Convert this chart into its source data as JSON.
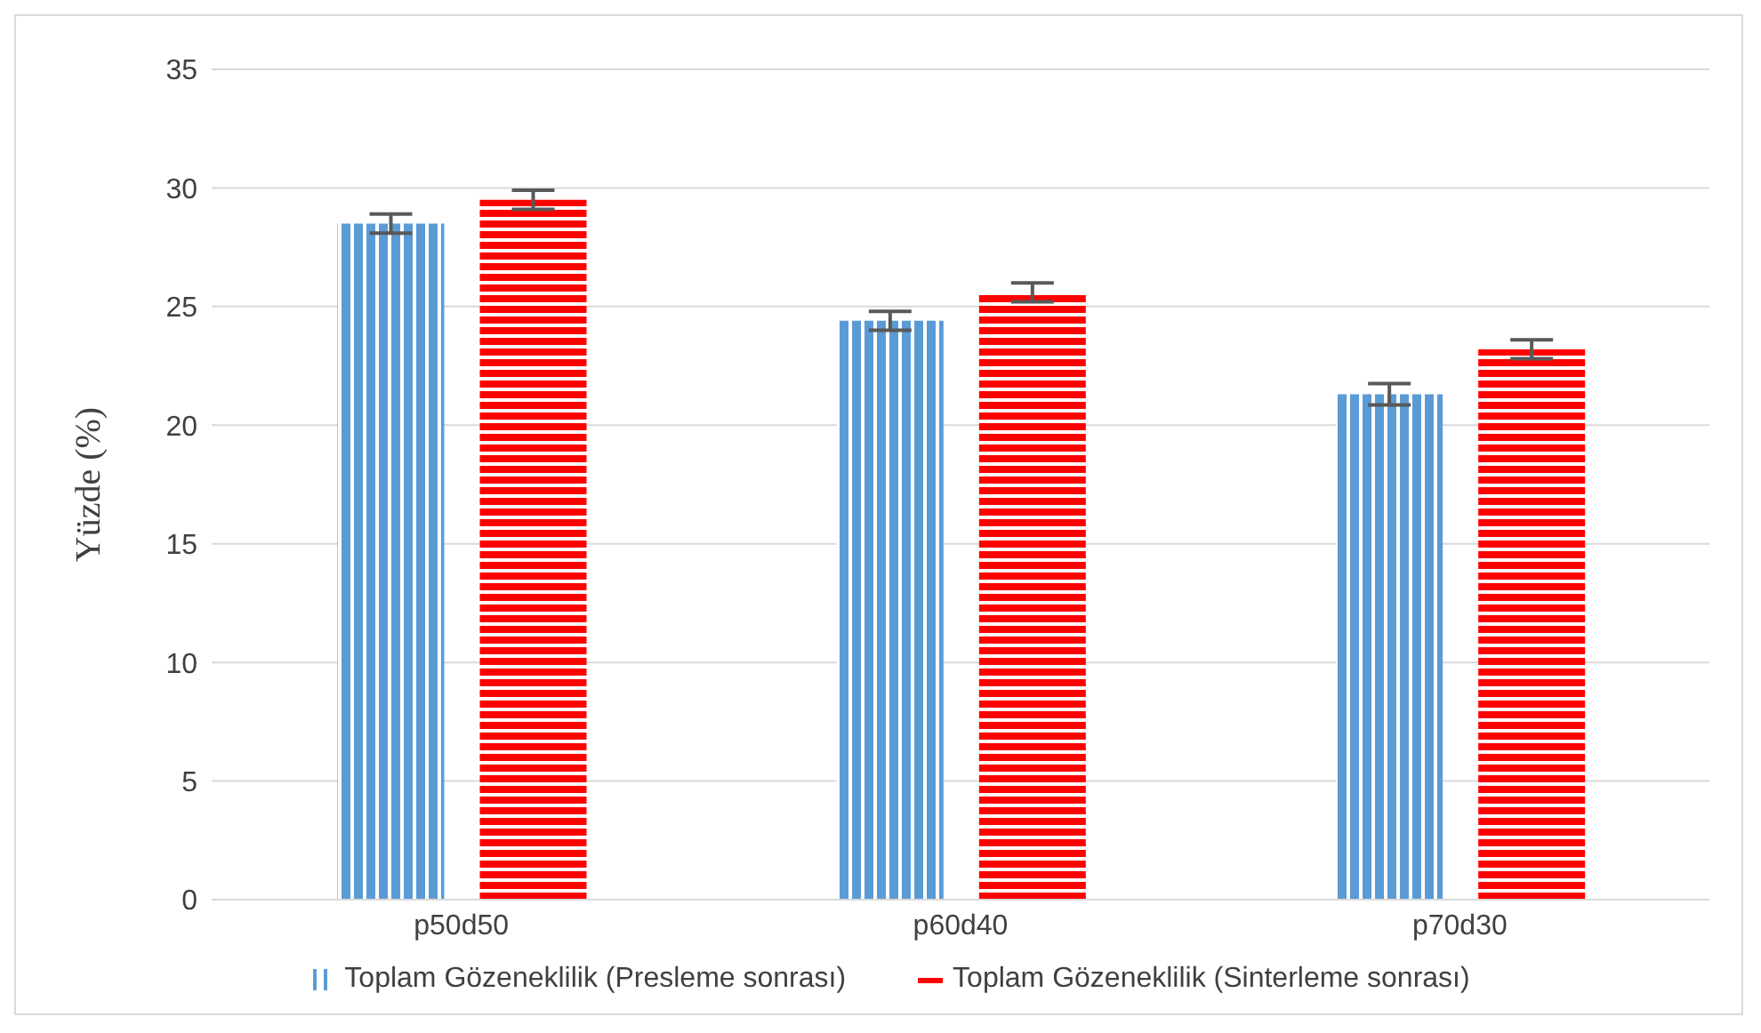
{
  "chart_data": {
    "type": "bar",
    "ylabel": "Yüzde (%)",
    "categories": [
      "p50d50",
      "p60d40",
      "p70d30"
    ],
    "series": [
      {
        "name": "Toplam Gözeneklilik (Presleme sonrası)",
        "color": "#5b9bd5",
        "values": [
          28.5,
          24.4,
          21.3
        ],
        "errors": [
          0.4,
          0.4,
          0.45
        ]
      },
      {
        "name": "Toplam Gözeneklilik (Sinterleme sonrası)",
        "color": "#ff0000",
        "values": [
          29.5,
          25.6,
          23.2
        ],
        "errors": [
          0.4,
          0.4,
          0.4
        ]
      }
    ],
    "ylim": [
      0,
      35
    ],
    "yticks": [
      0,
      5,
      10,
      15,
      20,
      25,
      30,
      35
    ],
    "grid": "y",
    "legend": "bottom"
  }
}
